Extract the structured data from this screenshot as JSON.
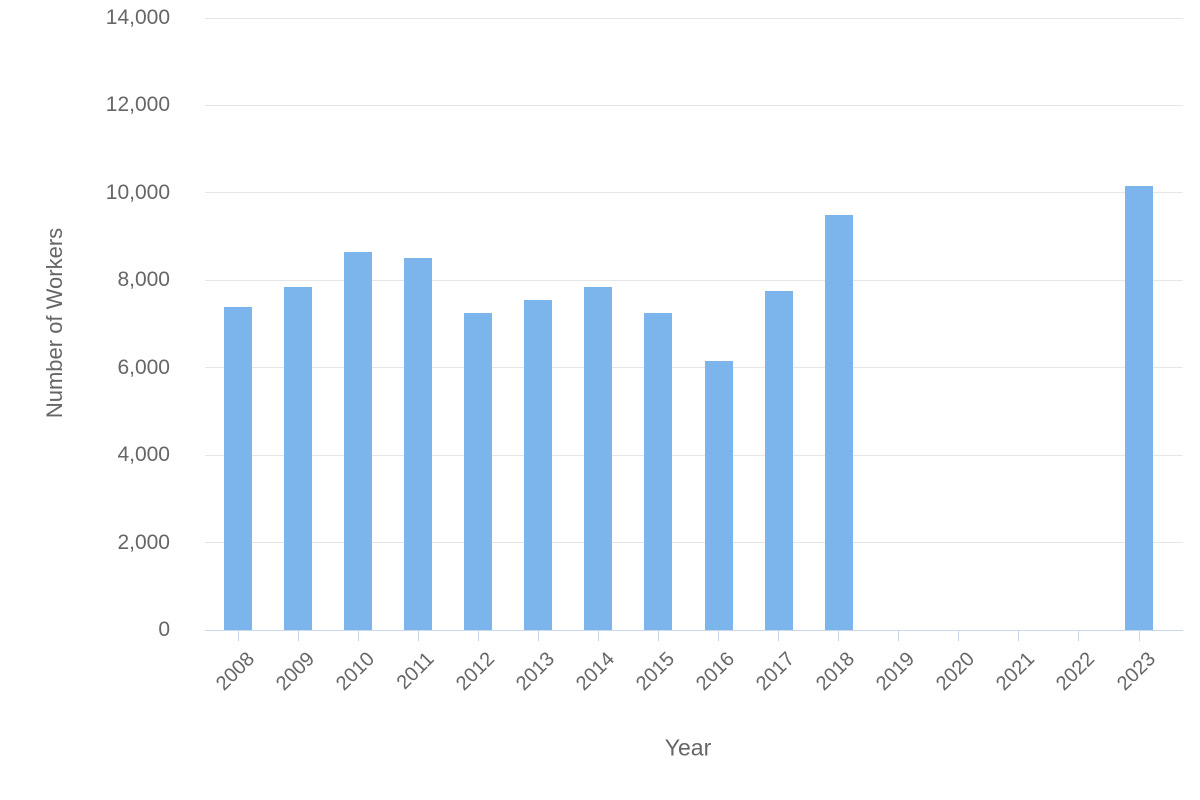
{
  "chart_data": {
    "type": "bar",
    "title": "",
    "xlabel": "Year",
    "ylabel": "Number of Workers",
    "categories": [
      "2008",
      "2009",
      "2010",
      "2011",
      "2012",
      "2013",
      "2014",
      "2015",
      "2016",
      "2017",
      "2018",
      "2019",
      "2020",
      "2021",
      "2022",
      "2023"
    ],
    "values": [
      7400,
      7850,
      8650,
      8500,
      7250,
      7550,
      7850,
      7250,
      6150,
      7750,
      9500,
      0,
      0,
      0,
      0,
      10150
    ],
    "ylim": [
      0,
      14000
    ],
    "ytick_step": 2000,
    "yticks": [
      "0",
      "2,000",
      "4,000",
      "6,000",
      "8,000",
      "10,000",
      "12,000",
      "14,000"
    ],
    "grid": true,
    "legend": "none",
    "colors": {
      "bar": "#7cb5ec",
      "grid": "#e6e6e6",
      "axis_line": "#ccd6eb",
      "label": "#666666"
    }
  }
}
